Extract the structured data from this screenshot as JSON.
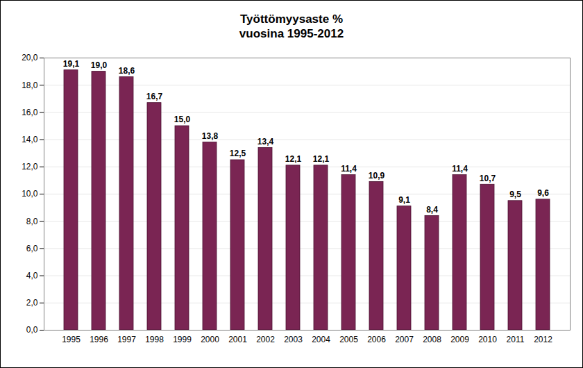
{
  "chart_data": {
    "type": "bar",
    "title": "Työttömyysaste %",
    "subtitle": "vuosina 1995-2012",
    "categories": [
      "1995",
      "1996",
      "1997",
      "1998",
      "1999",
      "2000",
      "2001",
      "2002",
      "2003",
      "2004",
      "2005",
      "2006",
      "2007",
      "2008",
      "2009",
      "2010",
      "2011",
      "2012"
    ],
    "values": [
      19.1,
      19.0,
      18.6,
      16.7,
      15.0,
      13.8,
      12.5,
      13.4,
      12.1,
      12.1,
      11.4,
      10.9,
      9.1,
      8.4,
      11.4,
      10.7,
      9.5,
      9.6
    ],
    "value_labels": [
      "19,1",
      "19,0",
      "18,6",
      "16,7",
      "15,0",
      "13,8",
      "12,5",
      "13,4",
      "12,1",
      "12,1",
      "11,4",
      "10,9",
      "9,1",
      "8,4",
      "11,4",
      "10,7",
      "9,5",
      "9,6"
    ],
    "color": "#7a2553",
    "ylim": [
      0,
      20
    ],
    "yticks": [
      {
        "value": 0,
        "label": "0,0"
      },
      {
        "value": 2,
        "label": "2,0"
      },
      {
        "value": 4,
        "label": "4,0"
      },
      {
        "value": 6,
        "label": "6,0"
      },
      {
        "value": 8,
        "label": "8,0"
      },
      {
        "value": 10,
        "label": "10,0"
      },
      {
        "value": 12,
        "label": "12,0"
      },
      {
        "value": 14,
        "label": "14,0"
      },
      {
        "value": 16,
        "label": "16,0"
      },
      {
        "value": 18,
        "label": "18,0"
      },
      {
        "value": 20,
        "label": "20,0"
      }
    ],
    "grid": true,
    "data_labels": true
  }
}
